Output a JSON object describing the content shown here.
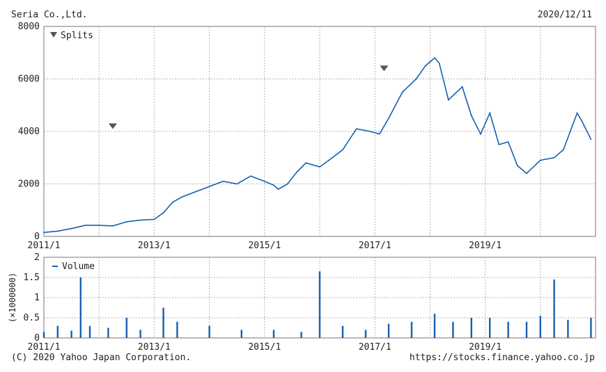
{
  "header": {
    "company": "Seria Co.,Ltd.",
    "date": "2020/12/11"
  },
  "footer": {
    "copyright": "(C) 2020 Yahoo Japan Corporation.",
    "url": "https://stocks.finance.yahoo.co.jp"
  },
  "colors": {
    "line": "#1560b0",
    "grid": "#b0b0b0",
    "marker": "#555555"
  },
  "chart_data": [
    {
      "type": "line",
      "x_tick_labels": [
        "2011/1",
        "2013/1",
        "2015/1",
        "2017/1",
        "2019/1"
      ],
      "y_tick_labels": [
        "0",
        "2000",
        "4000",
        "6000",
        "8000"
      ],
      "ylim": [
        0,
        8000
      ],
      "xlim": [
        "2011/1",
        "2021/1"
      ],
      "grid": true,
      "legend": {
        "label": "Splits",
        "placement": "top-left"
      },
      "splits": [
        {
          "date": "2012/4",
          "price": 4200
        },
        {
          "date": "2017/3",
          "price": 6400
        }
      ],
      "series": [
        {
          "name": "",
          "points": [
            [
              "2011/1",
              150
            ],
            [
              "2011/4",
              200
            ],
            [
              "2011/7",
              300
            ],
            [
              "2011/10",
              420
            ],
            [
              "2012/1",
              420
            ],
            [
              "2012/4",
              400
            ],
            [
              "2012/7",
              560
            ],
            [
              "2012/10",
              620
            ],
            [
              "2013/1",
              650
            ],
            [
              "2013/3",
              900
            ],
            [
              "2013/5",
              1300
            ],
            [
              "2013/7",
              1500
            ],
            [
              "2013/10",
              1700
            ],
            [
              "2014/1",
              1900
            ],
            [
              "2014/4",
              2100
            ],
            [
              "2014/7",
              2000
            ],
            [
              "2014/10",
              2300
            ],
            [
              "2015/1",
              2100
            ],
            [
              "2015/3",
              1950
            ],
            [
              "2015/4",
              1800
            ],
            [
              "2015/6",
              2000
            ],
            [
              "2015/8",
              2450
            ],
            [
              "2015/10",
              2800
            ],
            [
              "2016/1",
              2650
            ],
            [
              "2016/3",
              2900
            ],
            [
              "2016/6",
              3300
            ],
            [
              "2016/9",
              4100
            ],
            [
              "2016/12",
              4000
            ],
            [
              "2017/2",
              3900
            ],
            [
              "2017/4",
              4500
            ],
            [
              "2017/7",
              5500
            ],
            [
              "2017/10",
              6000
            ],
            [
              "2017/12",
              6500
            ],
            [
              "2018/2",
              6800
            ],
            [
              "2018/3",
              6600
            ],
            [
              "2018/5",
              5200
            ],
            [
              "2018/8",
              5700
            ],
            [
              "2018/10",
              4600
            ],
            [
              "2018/12",
              3900
            ],
            [
              "2019/2",
              4700
            ],
            [
              "2019/4",
              3500
            ],
            [
              "2019/6",
              3600
            ],
            [
              "2019/8",
              2700
            ],
            [
              "2019/10",
              2400
            ],
            [
              "2020/1",
              2900
            ],
            [
              "2020/4",
              3000
            ],
            [
              "2020/6",
              3300
            ],
            [
              "2020/9",
              4700
            ],
            [
              "2020/10",
              4400
            ],
            [
              "2020/12",
              3700
            ]
          ]
        }
      ]
    },
    {
      "type": "bar",
      "x_tick_labels": [
        "2011/1",
        "2013/1",
        "2015/1",
        "2017/1",
        "2019/1"
      ],
      "y_tick_labels": [
        "0",
        "0.5",
        "1",
        "1.5",
        "2"
      ],
      "ylabel": "(×1000000)",
      "ylim": [
        0,
        2
      ],
      "xlim": [
        "2011/1",
        "2021/1"
      ],
      "grid": true,
      "legend": {
        "label": "Volume",
        "placement": "top-left"
      },
      "series": [
        {
          "name": "Volume",
          "points": [
            [
              "2011/1",
              0.15
            ],
            [
              "2011/4",
              0.3
            ],
            [
              "2011/7",
              0.18
            ],
            [
              "2011/9",
              1.5
            ],
            [
              "2011/11",
              0.3
            ],
            [
              "2012/3",
              0.25
            ],
            [
              "2012/7",
              0.5
            ],
            [
              "2012/10",
              0.2
            ],
            [
              "2013/3",
              0.75
            ],
            [
              "2013/6",
              0.4
            ],
            [
              "2014/1",
              0.3
            ],
            [
              "2014/8",
              0.2
            ],
            [
              "2015/3",
              0.2
            ],
            [
              "2015/9",
              0.15
            ],
            [
              "2016/1",
              1.65
            ],
            [
              "2016/6",
              0.3
            ],
            [
              "2016/11",
              0.2
            ],
            [
              "2017/4",
              0.35
            ],
            [
              "2017/9",
              0.4
            ],
            [
              "2018/2",
              0.6
            ],
            [
              "2018/6",
              0.4
            ],
            [
              "2018/10",
              0.5
            ],
            [
              "2019/2",
              0.5
            ],
            [
              "2019/6",
              0.4
            ],
            [
              "2019/10",
              0.4
            ],
            [
              "2020/1",
              0.55
            ],
            [
              "2020/4",
              1.45
            ],
            [
              "2020/7",
              0.45
            ],
            [
              "2020/12",
              0.5
            ]
          ]
        }
      ]
    }
  ]
}
